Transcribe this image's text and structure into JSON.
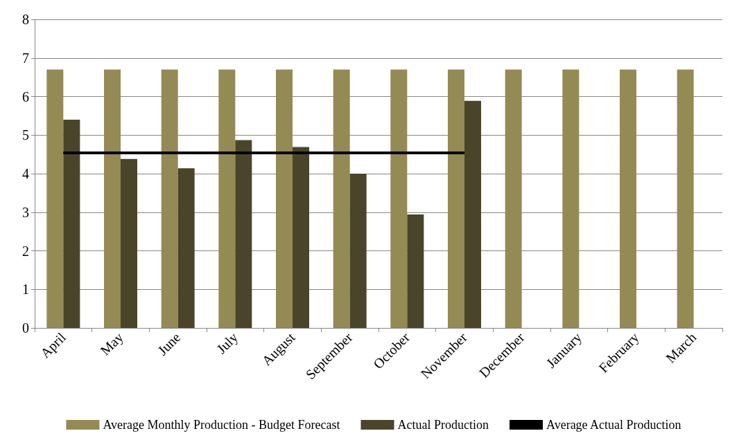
{
  "chart_data": {
    "type": "bar",
    "categories": [
      "April",
      "May",
      "June",
      "July",
      "August",
      "September",
      "October",
      "November",
      "December",
      "January",
      "February",
      "March"
    ],
    "series": [
      {
        "name": "Average Monthly Production - Budget Forecast",
        "color": "#948a54",
        "values": [
          6.7,
          6.7,
          6.7,
          6.7,
          6.7,
          6.7,
          6.7,
          6.7,
          6.7,
          6.7,
          6.7,
          6.7
        ]
      },
      {
        "name": "Actual Production",
        "color": "#4a452a",
        "values": [
          5.4,
          4.38,
          4.14,
          4.87,
          4.69,
          4.0,
          2.94,
          5.89,
          null,
          null,
          null,
          null
        ]
      },
      {
        "name": "Average Actual Production",
        "type": "line",
        "color": "#000000",
        "values": [
          4.54,
          4.54,
          4.54,
          4.54,
          4.54,
          4.54,
          4.54,
          4.54,
          null,
          null,
          null,
          null
        ]
      }
    ],
    "ylim": [
      0,
      8
    ],
    "yticks": [
      0,
      1,
      2,
      3,
      4,
      5,
      6,
      7,
      8
    ],
    "grid": "y",
    "legend": "bottom",
    "marker": "none"
  }
}
